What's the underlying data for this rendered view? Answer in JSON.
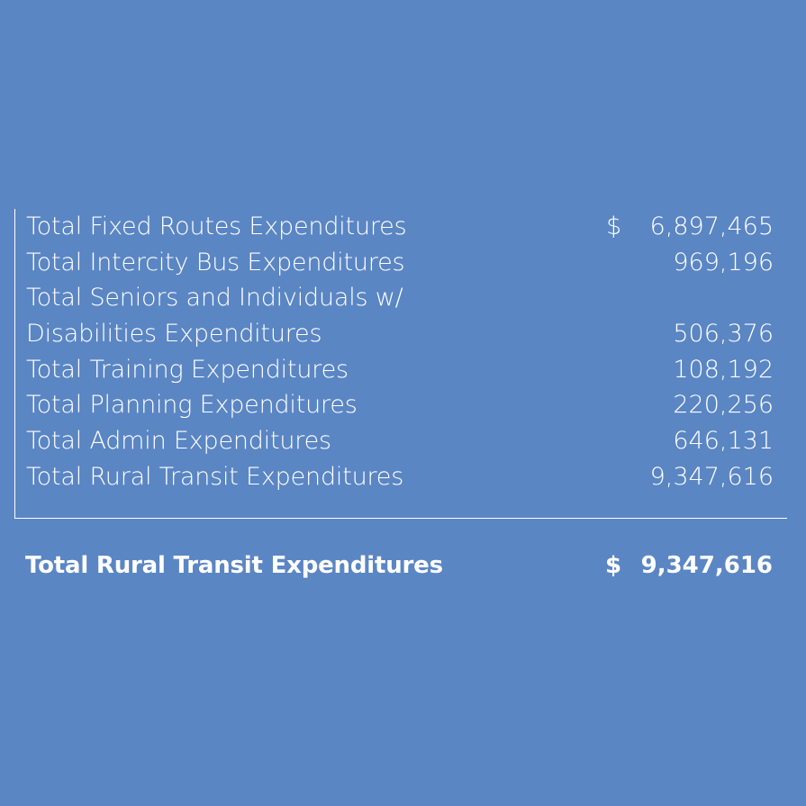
{
  "rows": [
    {
      "label": "Total Fixed Routes Expenditures",
      "currency": "$",
      "value": "6,897,465"
    },
    {
      "label": "Total Intercity Bus Expenditures",
      "currency": "",
      "value": "969,196"
    },
    {
      "label": "Total Seniors and Individuals w/",
      "currency": "",
      "value": ""
    },
    {
      "label": "Disabilities Expenditures",
      "currency": "",
      "value": "506,376"
    },
    {
      "label": "Total Training Expenditures",
      "currency": "",
      "value": "108,192"
    },
    {
      "label": "Total Planning Expenditures",
      "currency": "",
      "value": "220,256"
    },
    {
      "label": "Total Admin Expenditures",
      "currency": "",
      "value": "646,131"
    },
    {
      "label": "Total Rural Transit Expenditures",
      "currency": "",
      "value": "9,347,616"
    }
  ],
  "total": {
    "label": "Total Rural Transit Expenditures",
    "currency": "$",
    "value": "9,347,616"
  }
}
